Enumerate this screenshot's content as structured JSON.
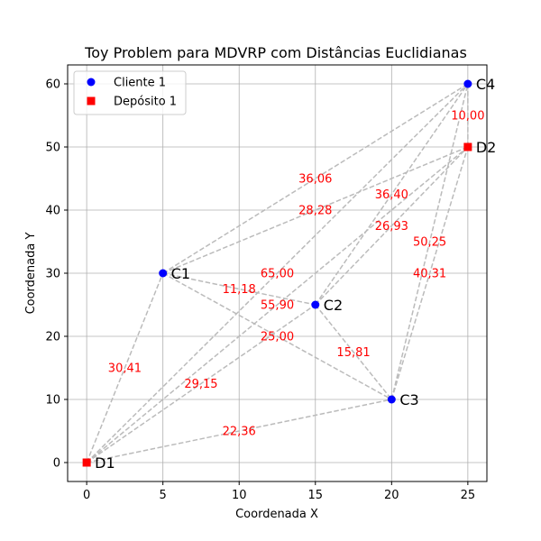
{
  "chart_data": {
    "type": "scatter",
    "title": "Toy Problem para MDVRP com Distâncias Euclidianas",
    "xlabel": "Coordenada X",
    "ylabel": "Coordenada Y",
    "xlim": [
      -1.25,
      26.25
    ],
    "ylim": [
      -3,
      63
    ],
    "xticks": [
      0,
      5,
      10,
      15,
      20,
      25
    ],
    "yticks": [
      0,
      10,
      20,
      30,
      40,
      50,
      60
    ],
    "grid": true,
    "legend": {
      "position": "top-left",
      "entries": [
        {
          "label": "Cliente 1",
          "marker": "circle",
          "color": "#0000ff"
        },
        {
          "label": "Depósito 1",
          "marker": "square",
          "color": "#ff0000"
        }
      ]
    },
    "series": [
      {
        "name": "Cliente 1",
        "marker": "circle",
        "color": "#0000ff",
        "points": [
          {
            "label": "C1",
            "x": 5,
            "y": 30
          },
          {
            "label": "C2",
            "x": 15,
            "y": 25
          },
          {
            "label": "C3",
            "x": 20,
            "y": 10
          },
          {
            "label": "C4",
            "x": 25,
            "y": 60
          }
        ]
      },
      {
        "name": "Depósito 1",
        "marker": "square",
        "color": "#ff0000",
        "points": [
          {
            "label": "D1",
            "x": 0,
            "y": 0
          },
          {
            "label": "D2",
            "x": 25,
            "y": 50
          }
        ]
      }
    ],
    "edge_color": "#bbbbbb",
    "edges": [
      {
        "from": "D1",
        "to": "C1",
        "label": "30,41"
      },
      {
        "from": "D1",
        "to": "C2",
        "label": "29,15"
      },
      {
        "from": "D1",
        "to": "C3",
        "label": "22,36"
      },
      {
        "from": "D1",
        "to": "C4",
        "label": "65,00"
      },
      {
        "from": "D1",
        "to": "D2",
        "label": "55,90"
      },
      {
        "from": "C1",
        "to": "C2",
        "label": "11,18"
      },
      {
        "from": "C1",
        "to": "C3",
        "label": "25,00"
      },
      {
        "from": "C1",
        "to": "C4",
        "label": "36,06"
      },
      {
        "from": "C1",
        "to": "D2",
        "label": "28,28"
      },
      {
        "from": "C2",
        "to": "C3",
        "label": "15,81"
      },
      {
        "from": "C2",
        "to": "C4",
        "label": "36,40"
      },
      {
        "from": "C2",
        "to": "D2",
        "label": "26,93"
      },
      {
        "from": "C3",
        "to": "C4",
        "label": "50,25"
      },
      {
        "from": "C3",
        "to": "D2",
        "label": "40,31"
      },
      {
        "from": "C4",
        "to": "D2",
        "label": "10,00"
      }
    ]
  }
}
